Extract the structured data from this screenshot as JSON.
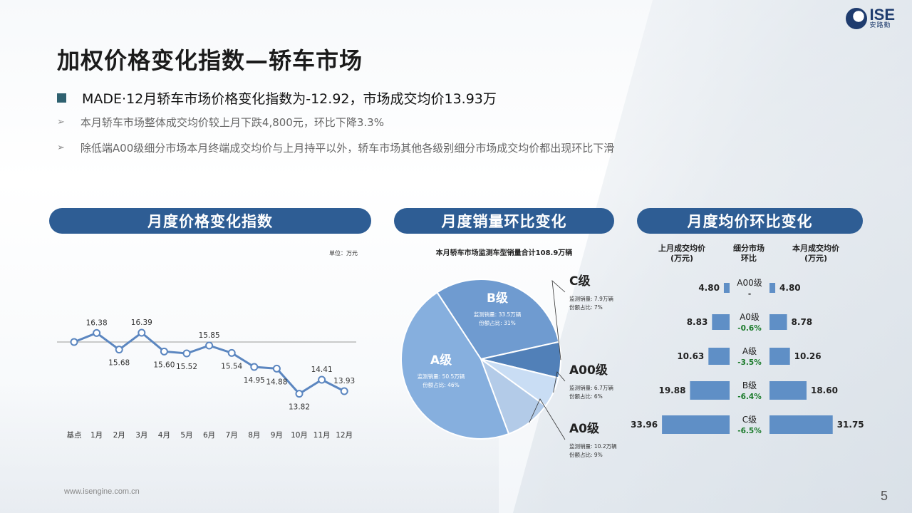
{
  "logo": {
    "brand": "ISE",
    "cn": "安路勤"
  },
  "title": "加权价格变化指数—轿车市场",
  "headline": "MADE·12月轿车市场价格变化指数为-12.92，市场成交均价13.93万",
  "subpoints": [
    "本月轿车市场整体成交均价较上月下跌4,800元，环比下降3.3%",
    "除低端A00级细分市场本月终端成交均价与上月持平以外，轿车市场其他各级别细分市场成交均价都出现环比下滑"
  ],
  "sections": {
    "left": "月度价格变化指数",
    "middle": "月度销量环比变化",
    "right": "月度均价环比变化"
  },
  "line_chart": {
    "unit": "单位：万元"
  },
  "pie_chart": {
    "title": "本月轿车市场监测车型销量合计108.9万辆"
  },
  "right_table": {
    "col_left": "上月成交均价\n(万元)",
    "col_mid": "细分市场\n环比",
    "col_right": "本月成交均价\n(万元)"
  },
  "footer": "www.isengine.com.cn",
  "page_number": "5",
  "colors": {
    "accent": "#2e5d94",
    "line": "#5b86c0",
    "neg": "#1a7a2a"
  },
  "chart_data": [
    {
      "type": "line",
      "categories": [
        "基点",
        "1月",
        "2月",
        "3月",
        "4月",
        "5月",
        "6月",
        "7月",
        "8月",
        "9月",
        "10月",
        "11月",
        "12月"
      ],
      "values": [
        16.0,
        16.38,
        15.68,
        16.39,
        15.6,
        15.52,
        15.85,
        15.54,
        14.95,
        14.88,
        13.82,
        14.41,
        13.93
      ],
      "labels": [
        "",
        "16.38",
        "15.68",
        "16.39",
        "15.60",
        "15.52",
        "15.85",
        "15.54",
        "14.95",
        "14.88",
        "13.82",
        "14.41",
        "13.93"
      ],
      "baseline": 16.0,
      "unit": "单位：万元"
    },
    {
      "type": "pie",
      "title": "本月轿车市场监测车型销量合计108.9万辆",
      "slices": [
        {
          "name": "B级",
          "value": 33.5,
          "share": "31%",
          "vol_label": "监测销量: 33.5万辆",
          "share_label": "份额占比: 31%",
          "color": "#6f9bd0"
        },
        {
          "name": "C级",
          "value": 7.9,
          "share": "7%",
          "vol_label": "监测销量: 7.9万辆",
          "share_label": "份额占比: 7%",
          "color": "#5180b8"
        },
        {
          "name": "A00级",
          "value": 6.7,
          "share": "6%",
          "vol_label": "监测销量: 6.7万辆",
          "share_label": "份额占比: 6%",
          "color": "#c9ddf4"
        },
        {
          "name": "A0级",
          "value": 10.2,
          "share": "9%",
          "vol_label": "监测销量: 10.2万辆",
          "share_label": "份额占比: 9%",
          "color": "#b3cbe8"
        },
        {
          "name": "A级",
          "value": 50.5,
          "share": "46%",
          "vol_label": "监测销量: 50.5万辆",
          "share_label": "份额占比: 46%",
          "color": "#86afde"
        }
      ]
    },
    {
      "type": "bar",
      "categories": [
        "A00级",
        "A0级",
        "A级",
        "B级",
        "C级"
      ],
      "series": [
        {
          "name": "上月成交均价\n(万元)",
          "values": [
            4.8,
            8.83,
            10.63,
            19.88,
            33.96
          ]
        },
        {
          "name": "本月成交均价\n(万元)",
          "values": [
            4.8,
            8.78,
            10.26,
            18.6,
            31.75
          ]
        }
      ],
      "changes": [
        "-",
        "-0.6%",
        "-3.5%",
        "-6.4%",
        "-6.5%"
      ]
    }
  ]
}
